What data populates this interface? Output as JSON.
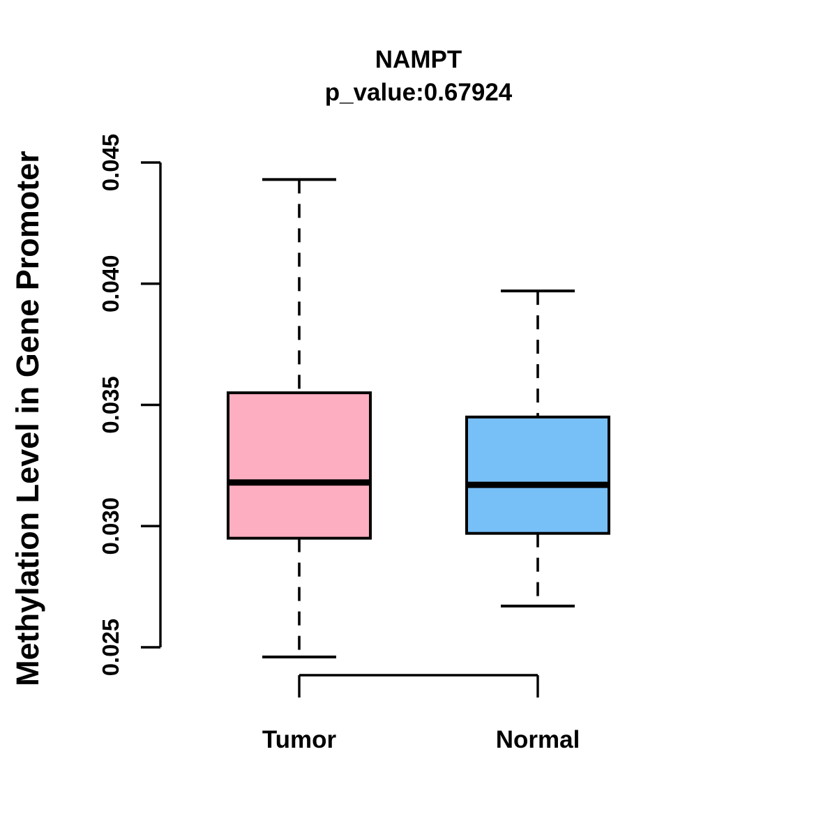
{
  "figure": {
    "title": "NAMPT",
    "subtitle": "p_value:0.67924",
    "ylabel": "Methylation Level in Gene Promoter"
  },
  "colors": {
    "line": "#000000",
    "background": "#FFFFFF",
    "tumor_fill": "#FDAEC0",
    "normal_fill": "#77BFF7"
  },
  "chart_data": {
    "type": "boxplot",
    "title": "NAMPT",
    "subtitle": "p_value:0.67924",
    "xlabel": "",
    "ylabel": "Methylation Level in Gene Promoter",
    "ylim": [
      0.025,
      0.045
    ],
    "yticks": [
      0.025,
      0.03,
      0.035,
      0.04,
      0.045
    ],
    "ytick_labels": [
      "0.025",
      "0.030",
      "0.035",
      "0.040",
      "0.045"
    ],
    "categories": [
      "Tumor",
      "Normal"
    ],
    "grid": false,
    "legend_position": "none",
    "groups": [
      {
        "label": "Tumor",
        "fill": "#FDAEC0",
        "whisker_low": 0.0246,
        "q1": 0.0295,
        "median": 0.0318,
        "q3": 0.0355,
        "whisker_high": 0.0443
      },
      {
        "label": "Normal",
        "fill": "#77BFF7",
        "whisker_low": 0.0267,
        "q1": 0.0297,
        "median": 0.0317,
        "q3": 0.0345,
        "whisker_high": 0.0397
      }
    ]
  }
}
